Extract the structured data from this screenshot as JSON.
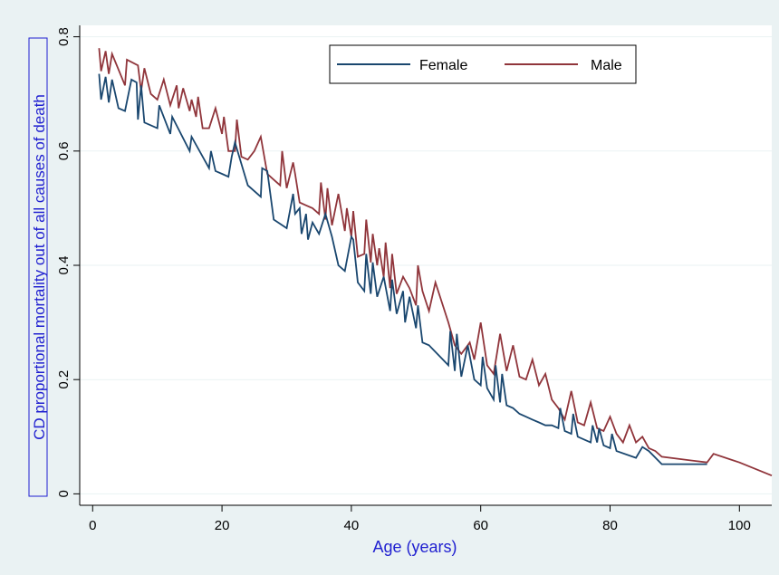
{
  "chart_data": {
    "type": "line",
    "title": "",
    "xlabel": "Age (years)",
    "ylabel": "CD proportional mortality out of all causes of death",
    "xlim": [
      -2,
      105
    ],
    "ylim": [
      -0.02,
      0.82
    ],
    "xticks": [
      0,
      20,
      40,
      60,
      80,
      100
    ],
    "yticks": [
      0,
      0.2,
      0.4,
      0.6,
      0.8
    ],
    "xtick_labels": [
      "0",
      "20",
      "40",
      "60",
      "80",
      "100"
    ],
    "ytick_labels": [
      "0",
      "0.2",
      "0.4",
      "0.6",
      "0.8"
    ],
    "grid": true,
    "legend_position": "top-right",
    "colors": {
      "background": "#eaf2f3",
      "plot_background": "#ffffff",
      "grid": "#eaf2f3",
      "female": "#1a476f",
      "male": "#90353b",
      "axis_label": "#1f1fd0"
    },
    "series": [
      {
        "name": "Female",
        "x": [
          1,
          1.3,
          2,
          2.5,
          3,
          4,
          5,
          6,
          6.8,
          7,
          7.5,
          8,
          10,
          10.3,
          12,
          12.3,
          15,
          15.3,
          18,
          18.3,
          19,
          20,
          21,
          21.5,
          22,
          24,
          26,
          26.2,
          27,
          28,
          30,
          31,
          31.3,
          32,
          32.3,
          33,
          33.3,
          34,
          35,
          36,
          37,
          38,
          39,
          40,
          40.3,
          41,
          42,
          42.3,
          43,
          43.3,
          44,
          45,
          46,
          46.3,
          47,
          48,
          48.3,
          49,
          50,
          50.3,
          51,
          52,
          55,
          55.3,
          56,
          56.3,
          57,
          58,
          59,
          60,
          60.3,
          61,
          62,
          62.3,
          63,
          63.3,
          64,
          65,
          66,
          67,
          68,
          69,
          70,
          71,
          72,
          72.3,
          73,
          74,
          74.3,
          75,
          76,
          77,
          77.3,
          78,
          78.3,
          79,
          80,
          80.3,
          81,
          84,
          85,
          86,
          88,
          95
        ],
        "y": [
          0.735,
          0.69,
          0.73,
          0.685,
          0.725,
          0.675,
          0.67,
          0.725,
          0.72,
          0.655,
          0.715,
          0.65,
          0.64,
          0.68,
          0.63,
          0.66,
          0.6,
          0.625,
          0.57,
          0.6,
          0.565,
          0.56,
          0.555,
          0.59,
          0.615,
          0.54,
          0.52,
          0.57,
          0.565,
          0.48,
          0.465,
          0.525,
          0.49,
          0.5,
          0.455,
          0.49,
          0.445,
          0.475,
          0.455,
          0.49,
          0.45,
          0.4,
          0.39,
          0.45,
          0.445,
          0.37,
          0.355,
          0.42,
          0.35,
          0.405,
          0.345,
          0.38,
          0.32,
          0.375,
          0.315,
          0.355,
          0.3,
          0.345,
          0.29,
          0.33,
          0.265,
          0.26,
          0.225,
          0.285,
          0.215,
          0.28,
          0.205,
          0.26,
          0.2,
          0.19,
          0.24,
          0.185,
          0.165,
          0.225,
          0.16,
          0.21,
          0.155,
          0.15,
          0.14,
          0.135,
          0.13,
          0.125,
          0.12,
          0.12,
          0.115,
          0.15,
          0.11,
          0.105,
          0.14,
          0.1,
          0.095,
          0.09,
          0.12,
          0.09,
          0.115,
          0.085,
          0.08,
          0.105,
          0.075,
          0.063,
          0.082,
          0.075,
          0.052,
          0.052
        ]
      },
      {
        "name": "Male",
        "x": [
          1,
          1.3,
          2,
          2.5,
          3,
          5,
          5.3,
          7,
          7.5,
          8,
          9,
          10,
          11,
          12,
          13,
          13.3,
          14,
          15,
          15.3,
          16,
          16.3,
          17,
          18,
          19,
          20,
          20.3,
          21,
          22,
          22.3,
          23,
          24,
          25,
          26,
          27,
          28,
          29,
          29.3,
          30,
          31,
          31.3,
          32,
          33,
          34,
          35,
          35.3,
          36,
          36.3,
          37,
          38,
          39,
          39.3,
          40,
          40.3,
          41,
          42,
          42.3,
          43,
          43.3,
          44,
          44.3,
          45,
          45.3,
          46,
          46.3,
          47,
          48,
          49,
          50,
          50.3,
          51,
          52,
          53,
          55,
          56,
          57,
          58,
          58.3,
          59,
          60,
          61,
          62,
          63,
          64,
          65,
          66,
          67,
          68,
          69,
          70,
          71,
          72,
          73,
          74,
          75,
          76,
          77,
          78,
          79,
          80,
          81,
          82,
          83,
          84,
          85,
          86,
          87,
          88,
          95,
          96,
          100,
          105
        ],
        "y": [
          0.78,
          0.74,
          0.775,
          0.735,
          0.77,
          0.715,
          0.76,
          0.75,
          0.705,
          0.745,
          0.7,
          0.69,
          0.725,
          0.68,
          0.715,
          0.675,
          0.71,
          0.67,
          0.69,
          0.66,
          0.695,
          0.64,
          0.64,
          0.675,
          0.63,
          0.66,
          0.6,
          0.6,
          0.655,
          0.59,
          0.585,
          0.6,
          0.625,
          0.56,
          0.55,
          0.54,
          0.6,
          0.535,
          0.58,
          0.56,
          0.51,
          0.505,
          0.5,
          0.49,
          0.545,
          0.48,
          0.535,
          0.47,
          0.525,
          0.46,
          0.5,
          0.45,
          0.495,
          0.415,
          0.42,
          0.48,
          0.405,
          0.455,
          0.4,
          0.43,
          0.38,
          0.44,
          0.36,
          0.42,
          0.35,
          0.38,
          0.36,
          0.33,
          0.4,
          0.355,
          0.32,
          0.37,
          0.3,
          0.26,
          0.245,
          0.26,
          0.265,
          0.235,
          0.3,
          0.225,
          0.21,
          0.28,
          0.215,
          0.26,
          0.205,
          0.2,
          0.235,
          0.19,
          0.21,
          0.165,
          0.15,
          0.13,
          0.18,
          0.125,
          0.12,
          0.16,
          0.115,
          0.11,
          0.135,
          0.105,
          0.09,
          0.12,
          0.09,
          0.1,
          0.08,
          0.075,
          0.065,
          0.055,
          0.07,
          0.055,
          0.032
        ]
      }
    ]
  }
}
